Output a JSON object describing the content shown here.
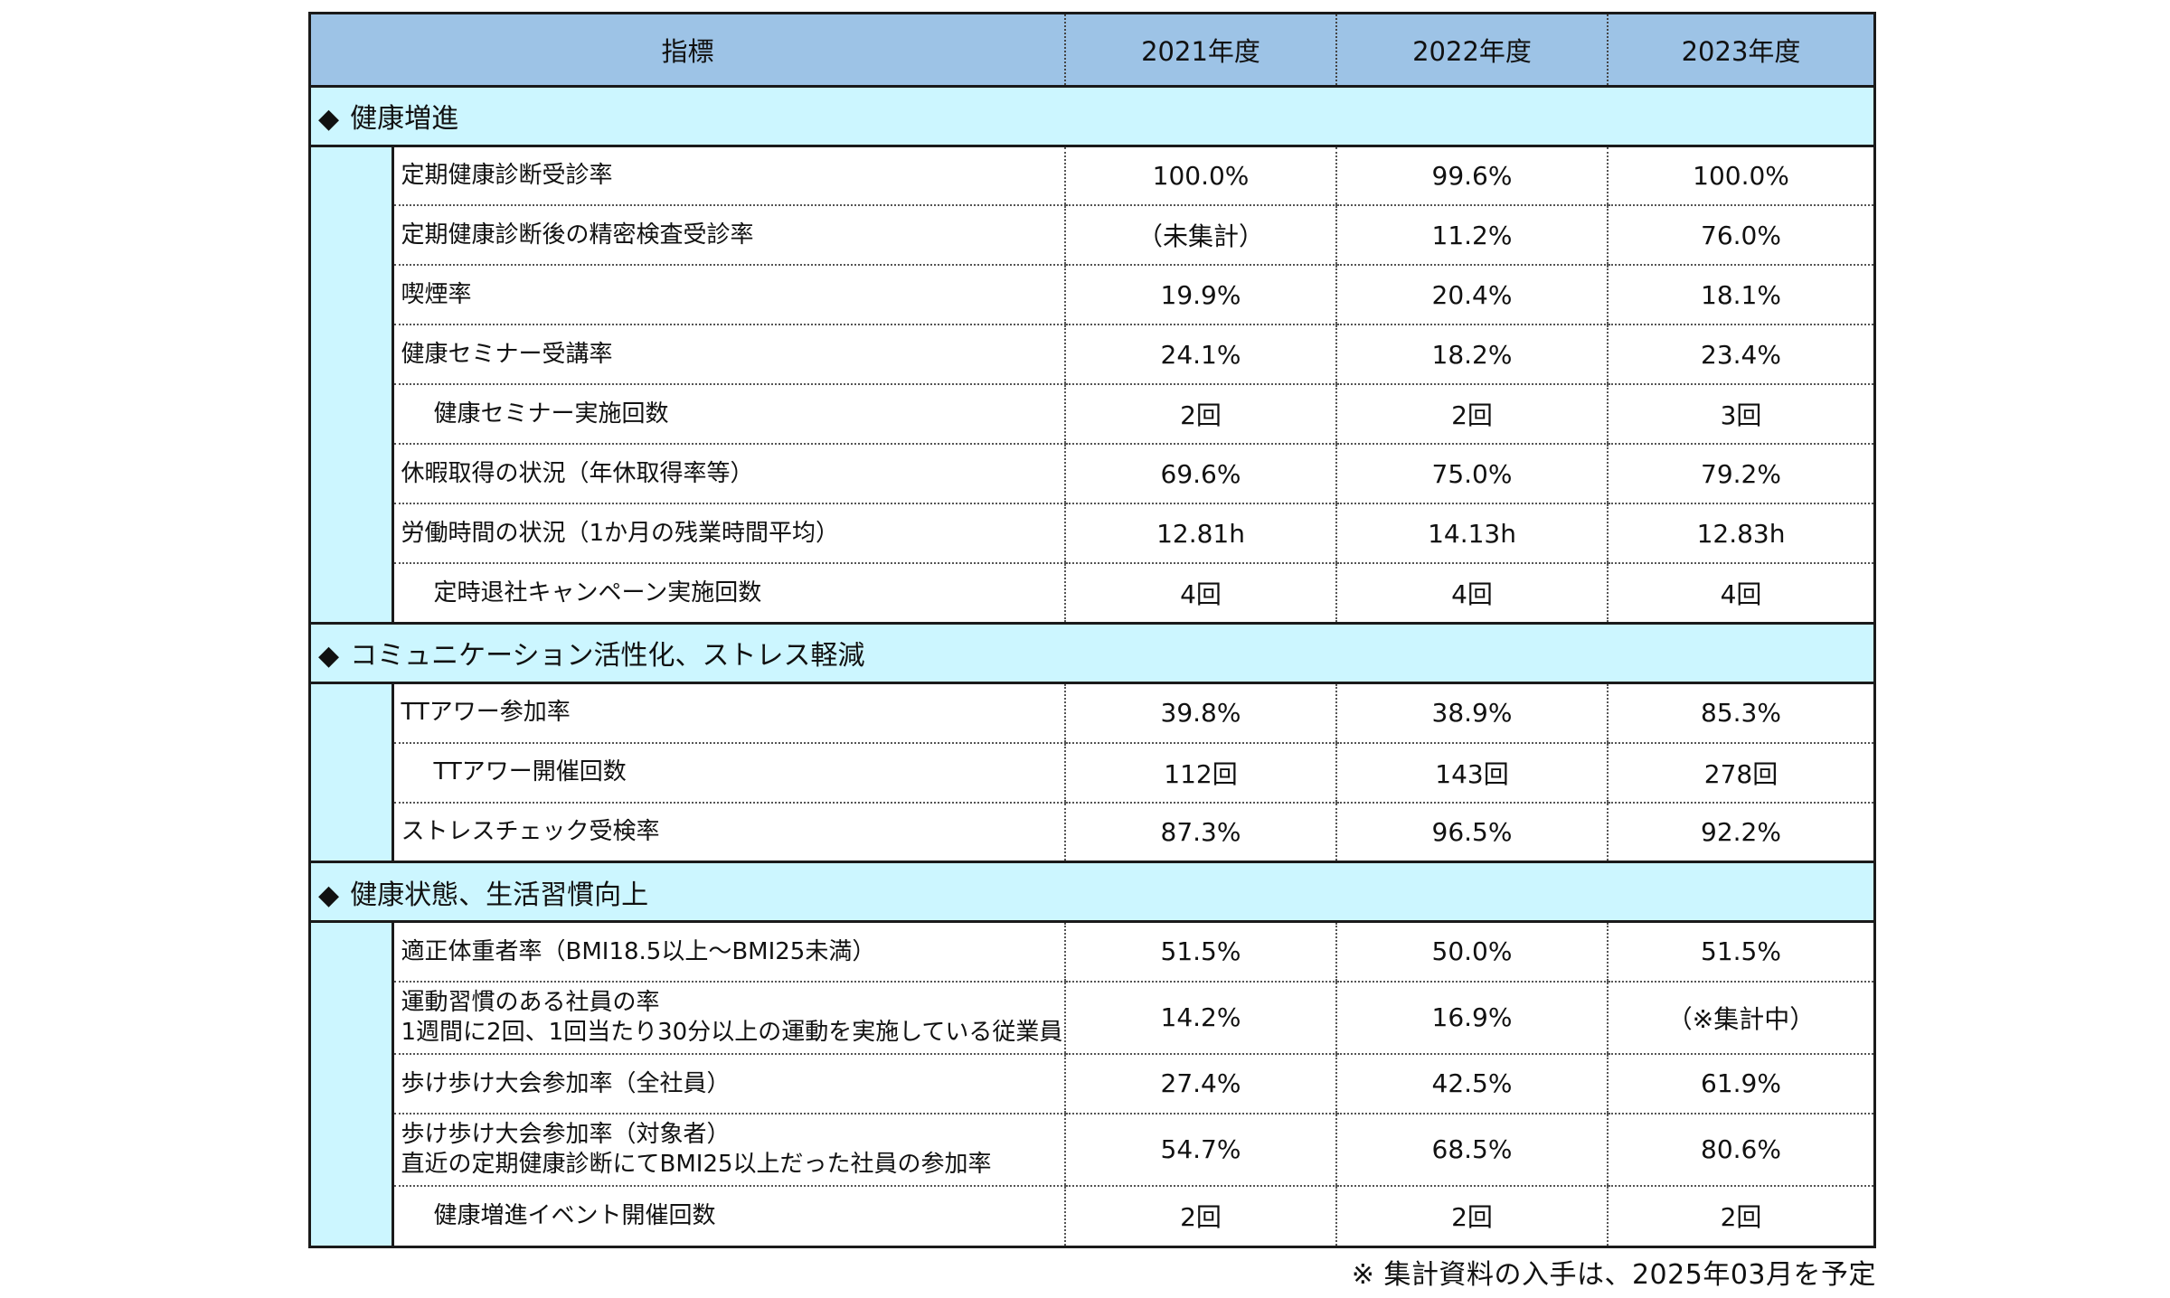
{
  "header": {
    "indicator": "指標",
    "years": [
      "2021年度",
      "2022年度",
      "2023年度"
    ]
  },
  "sections": [
    {
      "title": "健康増進",
      "rows": [
        {
          "label": [
            "定期健康診断受診率"
          ],
          "sub": false,
          "values": [
            "100.0%",
            "99.6%",
            "100.0%"
          ]
        },
        {
          "label": [
            "定期健康診断後の精密検査受診率"
          ],
          "sub": false,
          "values": [
            "（未集計）",
            "11.2%",
            "76.0%"
          ]
        },
        {
          "label": [
            "喫煙率"
          ],
          "sub": false,
          "values": [
            "19.9%",
            "20.4%",
            "18.1%"
          ]
        },
        {
          "label": [
            "健康セミナー受講率"
          ],
          "sub": false,
          "values": [
            "24.1%",
            "18.2%",
            "23.4%"
          ]
        },
        {
          "label": [
            "健康セミナー実施回数"
          ],
          "sub": true,
          "values": [
            "2回",
            "2回",
            "3回"
          ]
        },
        {
          "label": [
            "休暇取得の状況（年休取得率等）"
          ],
          "sub": false,
          "values": [
            "69.6%",
            "75.0%",
            "79.2%"
          ]
        },
        {
          "label": [
            "労働時間の状況（1か月の残業時間平均）"
          ],
          "sub": false,
          "values": [
            "12.81h",
            "14.13h",
            "12.83h"
          ]
        },
        {
          "label": [
            "定時退社キャンペーン実施回数"
          ],
          "sub": true,
          "values": [
            "4回",
            "4回",
            "4回"
          ]
        }
      ]
    },
    {
      "title": "コミュニケーション活性化、ストレス軽減",
      "rows": [
        {
          "label": [
            "TTアワー参加率"
          ],
          "sub": false,
          "values": [
            "39.8%",
            "38.9%",
            "85.3%"
          ]
        },
        {
          "label": [
            "TTアワー開催回数"
          ],
          "sub": true,
          "values": [
            "112回",
            "143回",
            "278回"
          ]
        },
        {
          "label": [
            "ストレスチェック受検率"
          ],
          "sub": false,
          "values": [
            "87.3%",
            "96.5%",
            "92.2%"
          ]
        }
      ]
    },
    {
      "title": "健康状態、生活習慣向上",
      "rows": [
        {
          "label": [
            "適正体重者率（BMI18.5以上～BMI25未満）"
          ],
          "sub": false,
          "values": [
            "51.5%",
            "50.0%",
            "51.5%"
          ]
        },
        {
          "label": [
            "運動習慣のある社員の率",
            "1週間に2回、1回当たり30分以上の運動を実施している従業員"
          ],
          "sub": false,
          "values": [
            "14.2%",
            "16.9%",
            "（※集計中）"
          ]
        },
        {
          "label": [
            "歩け歩け大会参加率（全社員）"
          ],
          "sub": false,
          "values": [
            "27.4%",
            "42.5%",
            "61.9%"
          ]
        },
        {
          "label": [
            "歩け歩け大会参加率（対象者）",
            "直近の定期健康診断にてBMI25以上だった社員の参加率"
          ],
          "sub": false,
          "values": [
            "54.7%",
            "68.5%",
            "80.6%"
          ]
        },
        {
          "label": [
            "健康増進イベント開催回数"
          ],
          "sub": true,
          "values": [
            "2回",
            "2回",
            "2回"
          ]
        }
      ]
    }
  ],
  "section_marker": "◆",
  "footnote": "※ 集計資料の入手は、2025年03月を予定"
}
